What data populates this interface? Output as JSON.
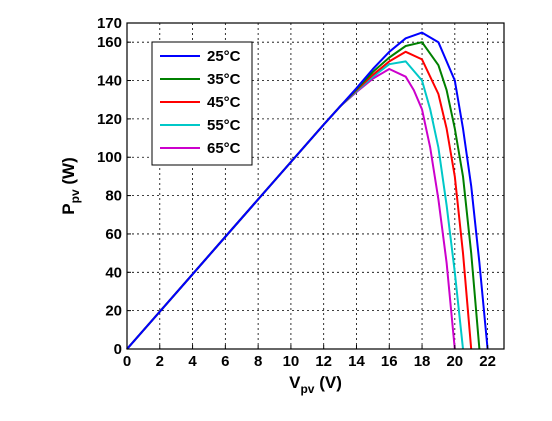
{
  "chart_data": {
    "type": "line",
    "title": "",
    "xlabel": {
      "main": "V",
      "sub": "pv",
      "unit": " (V)"
    },
    "ylabel": {
      "main": "P",
      "sub": "pv",
      "unit": " (W)"
    },
    "xlim": [
      0,
      23
    ],
    "ylim": [
      0,
      170
    ],
    "xticks": [
      0,
      2,
      4,
      6,
      8,
      10,
      12,
      14,
      16,
      18,
      20,
      22
    ],
    "yticks": [
      0,
      20,
      40,
      60,
      80,
      100,
      120,
      140,
      160,
      170
    ],
    "grid": true,
    "legend_position": "top-left",
    "series": [
      {
        "name": "25°C",
        "color": "#0000ff",
        "x": [
          0,
          2,
          4,
          6,
          8,
          10,
          12,
          13,
          14,
          15,
          16,
          17,
          18,
          19,
          20,
          20.5,
          21,
          21.5,
          22
        ],
        "y": [
          0,
          19.5,
          39,
          58.5,
          78,
          97.5,
          117,
          126.5,
          136,
          146,
          155,
          162,
          165,
          160,
          140,
          115,
          85,
          45,
          0
        ]
      },
      {
        "name": "35°C",
        "color": "#008000",
        "x": [
          0,
          2,
          4,
          6,
          8,
          10,
          12,
          13,
          14,
          15,
          16,
          17,
          18,
          19,
          19.5,
          20,
          20.5,
          21,
          21.5
        ],
        "y": [
          0,
          19.5,
          39,
          58.5,
          78,
          97.5,
          117,
          126.5,
          135.5,
          144.5,
          152,
          158,
          160,
          148,
          135,
          115,
          90,
          50,
          0
        ]
      },
      {
        "name": "45°C",
        "color": "#ff0000",
        "x": [
          0,
          2,
          4,
          6,
          8,
          10,
          12,
          13,
          14,
          15,
          16,
          17,
          18,
          19,
          19.5,
          20,
          20.5,
          21
        ],
        "y": [
          0,
          19.5,
          39,
          58.5,
          78,
          97.5,
          117,
          126.5,
          135,
          143,
          150,
          155,
          151,
          133,
          115,
          90,
          50,
          0
        ]
      },
      {
        "name": "55°C",
        "color": "#00c8c8",
        "x": [
          0,
          2,
          4,
          6,
          8,
          10,
          12,
          13,
          14,
          15,
          16,
          17,
          18,
          18.5,
          19,
          19.5,
          20,
          20.5
        ],
        "y": [
          0,
          19.5,
          39,
          58.5,
          78,
          97.5,
          117,
          126.5,
          134.5,
          142,
          148.5,
          150,
          140,
          125,
          105,
          75,
          40,
          0
        ]
      },
      {
        "name": "65°C",
        "color": "#cc00cc",
        "x": [
          0,
          2,
          4,
          6,
          8,
          10,
          12,
          13,
          14,
          15,
          16,
          17,
          17.5,
          18,
          18.5,
          19,
          19.5,
          20
        ],
        "y": [
          0,
          19.5,
          39,
          58.5,
          78,
          97.5,
          117,
          126.5,
          134,
          141,
          146,
          142,
          135,
          125,
          105,
          78,
          45,
          0
        ]
      }
    ]
  }
}
